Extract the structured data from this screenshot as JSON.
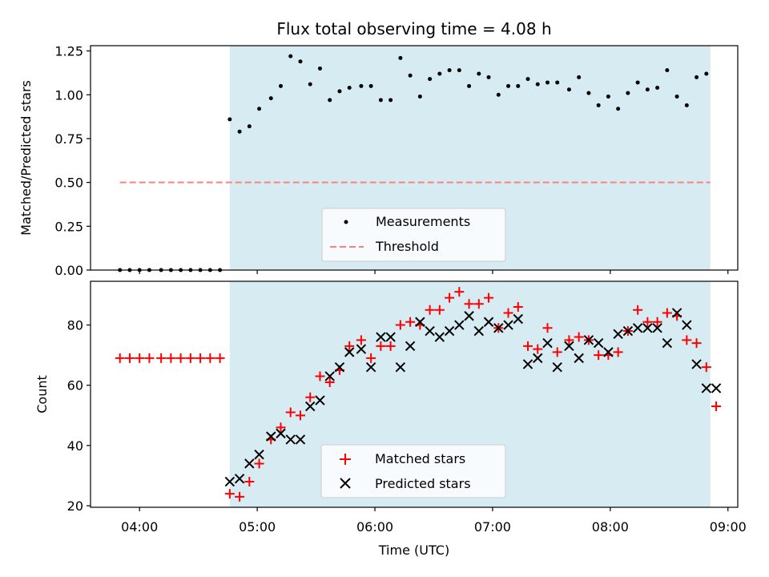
{
  "title": "Flux total observing time = 4.08 h",
  "colors": {
    "shade": "#add8e6",
    "measurement": "#000000",
    "threshold": "#ff7f7f",
    "matched": "#ff0000",
    "predicted": "#000000"
  },
  "chart_data": [
    {
      "type": "scatter",
      "ylabel": "Matched/Predicted stars",
      "ylim": [
        0,
        1.28
      ],
      "yticks": [
        "0.00",
        "0.25",
        "0.50",
        "0.75",
        "1.00",
        "1.25"
      ],
      "ytick_values": [
        0,
        0.25,
        0.5,
        0.75,
        1.0,
        1.25
      ],
      "xlim": [
        "03:35",
        "09:05"
      ],
      "shaded_span": [
        "04:46",
        "08:51"
      ],
      "legend": {
        "placement": "lower-center",
        "entries": [
          "Measurements",
          "Threshold"
        ]
      },
      "threshold": {
        "name": "Threshold",
        "y": 0.5,
        "x_start": "03:50",
        "x_end": "08:51"
      },
      "series": [
        {
          "name": "Measurements",
          "marker": "dot",
          "x": [
            "03:50",
            "03:55",
            "04:00",
            "04:05",
            "04:11",
            "04:16",
            "04:21",
            "04:26",
            "04:31",
            "04:36",
            "04:41",
            "04:46",
            "04:51",
            "04:56",
            "05:01",
            "05:07",
            "05:12",
            "05:17",
            "05:22",
            "05:27",
            "05:32",
            "05:37",
            "05:42",
            "05:47",
            "05:53",
            "05:58",
            "06:03",
            "06:08",
            "06:13",
            "06:18",
            "06:23",
            "06:28",
            "06:33",
            "06:38",
            "06:43",
            "06:48",
            "06:53",
            "06:58",
            "07:03",
            "07:08",
            "07:13",
            "07:18",
            "07:23",
            "07:28",
            "07:33",
            "07:39",
            "07:44",
            "07:49",
            "07:54",
            "07:59",
            "08:04",
            "08:09",
            "08:14",
            "08:19",
            "08:24",
            "08:29",
            "08:34",
            "08:39",
            "08:44",
            "08:49"
          ],
          "y": [
            0,
            0,
            0,
            0,
            0,
            0,
            0,
            0,
            0,
            0,
            0,
            0.86,
            0.79,
            0.82,
            0.92,
            0.98,
            1.05,
            1.22,
            1.19,
            1.06,
            1.15,
            0.97,
            1.02,
            1.04,
            1.05,
            1.05,
            0.97,
            0.97,
            1.21,
            1.11,
            0.99,
            1.09,
            1.12,
            1.14,
            1.14,
            1.05,
            1.12,
            1.1,
            1.0,
            1.05,
            1.05,
            1.09,
            1.06,
            1.07,
            1.07,
            1.03,
            1.1,
            1.01,
            0.94,
            0.99,
            0.92,
            1.01,
            1.07,
            1.03,
            1.04,
            1.14,
            0.99,
            0.94,
            1.1,
            1.12
          ]
        }
      ]
    },
    {
      "type": "scatter",
      "xlabel": "Time (UTC)",
      "ylabel": "Count",
      "ylim": [
        19.5,
        94.5
      ],
      "yticks": [
        "20",
        "40",
        "60",
        "80"
      ],
      "ytick_values": [
        20,
        40,
        60,
        80
      ],
      "xlim": [
        "03:35",
        "09:05"
      ],
      "xticks": [
        "04:00",
        "05:00",
        "06:00",
        "07:00",
        "08:00",
        "09:00"
      ],
      "shaded_span": [
        "04:46",
        "08:51"
      ],
      "legend": {
        "placement": "lower-center",
        "entries": [
          "Matched stars",
          "Predicted stars"
        ]
      },
      "series": [
        {
          "name": "Matched stars",
          "marker": "plus",
          "x": [
            "03:50",
            "03:55",
            "04:00",
            "04:05",
            "04:11",
            "04:16",
            "04:21",
            "04:26",
            "04:31",
            "04:36",
            "04:41",
            "04:46",
            "04:51",
            "04:56",
            "05:01",
            "05:07",
            "05:12",
            "05:17",
            "05:22",
            "05:27",
            "05:32",
            "05:37",
            "05:42",
            "05:47",
            "05:53",
            "05:58",
            "06:03",
            "06:08",
            "06:13",
            "06:18",
            "06:23",
            "06:28",
            "06:33",
            "06:38",
            "06:43",
            "06:48",
            "06:53",
            "06:58",
            "07:03",
            "07:08",
            "07:13",
            "07:18",
            "07:23",
            "07:28",
            "07:33",
            "07:39",
            "07:44",
            "07:49",
            "07:54",
            "07:59",
            "08:04",
            "08:09",
            "08:14",
            "08:19",
            "08:24",
            "08:29",
            "08:34",
            "08:39",
            "08:44",
            "08:49",
            "08:54"
          ],
          "y": [
            69,
            69,
            69,
            69,
            69,
            69,
            69,
            69,
            69,
            69,
            69,
            24,
            23,
            28,
            34,
            42,
            46,
            51,
            50,
            56,
            63,
            61,
            65,
            73,
            75,
            69,
            73,
            73,
            80,
            81,
            80,
            85,
            85,
            89,
            91,
            87,
            87,
            89,
            79,
            84,
            86,
            73,
            72,
            79,
            71,
            75,
            76,
            75,
            70,
            70,
            71,
            78,
            85,
            81,
            81,
            84,
            83,
            75,
            74,
            66,
            53
          ]
        },
        {
          "name": "Predicted stars",
          "marker": "x",
          "x": [
            "04:46",
            "04:51",
            "04:56",
            "05:01",
            "05:07",
            "05:12",
            "05:17",
            "05:22",
            "05:27",
            "05:32",
            "05:37",
            "05:42",
            "05:47",
            "05:53",
            "05:58",
            "06:03",
            "06:08",
            "06:13",
            "06:18",
            "06:23",
            "06:28",
            "06:33",
            "06:38",
            "06:43",
            "06:48",
            "06:53",
            "06:58",
            "07:03",
            "07:08",
            "07:13",
            "07:18",
            "07:23",
            "07:28",
            "07:33",
            "07:39",
            "07:44",
            "07:49",
            "07:54",
            "07:59",
            "08:04",
            "08:09",
            "08:14",
            "08:19",
            "08:24",
            "08:29",
            "08:34",
            "08:39",
            "08:44",
            "08:49",
            "08:54"
          ],
          "y": [
            28,
            29,
            34,
            37,
            43,
            44,
            42,
            42,
            53,
            55,
            63,
            66,
            71,
            72,
            66,
            76,
            76,
            66,
            73,
            81,
            78,
            76,
            78,
            80,
            83,
            78,
            81,
            79,
            80,
            82,
            67,
            69,
            74,
            66,
            73,
            69,
            75,
            74,
            71,
            77,
            78,
            79,
            79,
            79,
            74,
            84,
            80,
            67,
            59,
            59
          ]
        }
      ]
    }
  ]
}
